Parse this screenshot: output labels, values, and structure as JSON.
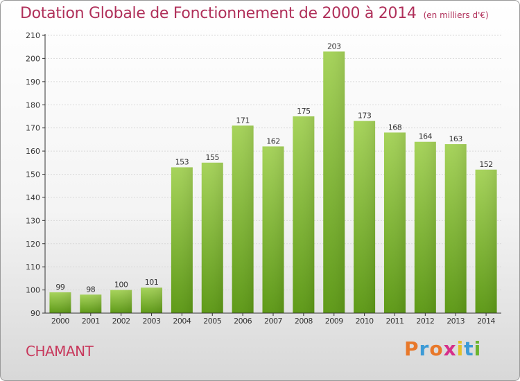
{
  "chart_data": {
    "type": "bar",
    "title": "Dotation Globale de Fonctionnement de 2000 à 2014",
    "unit_label": "(en milliers d'€)",
    "categories": [
      "2000",
      "2001",
      "2002",
      "2003",
      "2004",
      "2005",
      "2006",
      "2007",
      "2008",
      "2009",
      "2010",
      "2011",
      "2012",
      "2013",
      "2014"
    ],
    "values": [
      99,
      98,
      100,
      101,
      153,
      155,
      171,
      162,
      175,
      203,
      173,
      168,
      164,
      163,
      152
    ],
    "value_labels": [
      "99",
      "98",
      "100",
      "101",
      "153",
      "155",
      "171",
      "162",
      "175",
      "203",
      "173",
      "168",
      "164",
      "163",
      "152"
    ],
    "ylim": [
      90,
      210
    ],
    "yticks": [
      "90",
      "100",
      "110",
      "120",
      "130",
      "140",
      "150",
      "160",
      "170",
      "180",
      "190",
      "200",
      "210"
    ],
    "xlabel": "",
    "ylabel": "",
    "grid": true,
    "bar_color_top": "#a6d35a",
    "bar_color_bottom": "#5e9a17"
  },
  "footer": {
    "commune_name": "CHAMANT",
    "brand_letters": [
      "P",
      "r",
      "o",
      "x",
      "i",
      "t",
      "i"
    ],
    "brand_colors": [
      "#e8782a",
      "#3d9bd6",
      "#e8782a",
      "#d62f8a",
      "#e3c12a",
      "#3d9bd6",
      "#6ab42d"
    ]
  }
}
